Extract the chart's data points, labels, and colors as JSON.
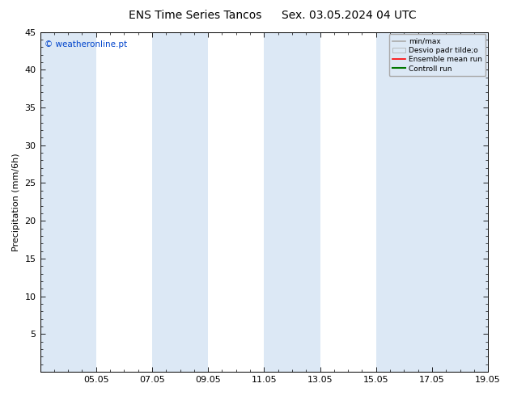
{
  "title1": "ENS Time Series Tancos",
  "title2": "Sex. 03.05.2024 04 UTC",
  "ylabel": "Precipitation (mm/6h)",
  "ylim": [
    0,
    45
  ],
  "yticks": [
    0,
    5,
    10,
    15,
    20,
    25,
    30,
    35,
    40,
    45
  ],
  "xlim": [
    0,
    16
  ],
  "xtick_labels": [
    "05.05",
    "07.05",
    "09.05",
    "11.05",
    "13.05",
    "15.05",
    "17.05",
    "19.05"
  ],
  "xtick_positions": [
    2,
    4,
    6,
    8,
    10,
    12,
    14,
    16
  ],
  "shade_bands": [
    [
      0,
      2
    ],
    [
      4,
      6
    ],
    [
      8,
      10
    ],
    [
      12,
      14
    ],
    [
      14,
      16
    ]
  ],
  "shade_color": "#dce8f5",
  "watermark": "© weatheronline.pt",
  "watermark_color": "#0044cc",
  "legend_labels": [
    "min/max",
    "Desvio padr tilde;o",
    "Ensemble mean run",
    "Controll run"
  ],
  "legend_line_colors": [
    "#aaaaaa",
    "#c8daea",
    "#ff0000",
    "#007700"
  ],
  "background_color": "#ffffff",
  "title_fontsize": 10,
  "axis_label_fontsize": 8,
  "tick_fontsize": 8
}
